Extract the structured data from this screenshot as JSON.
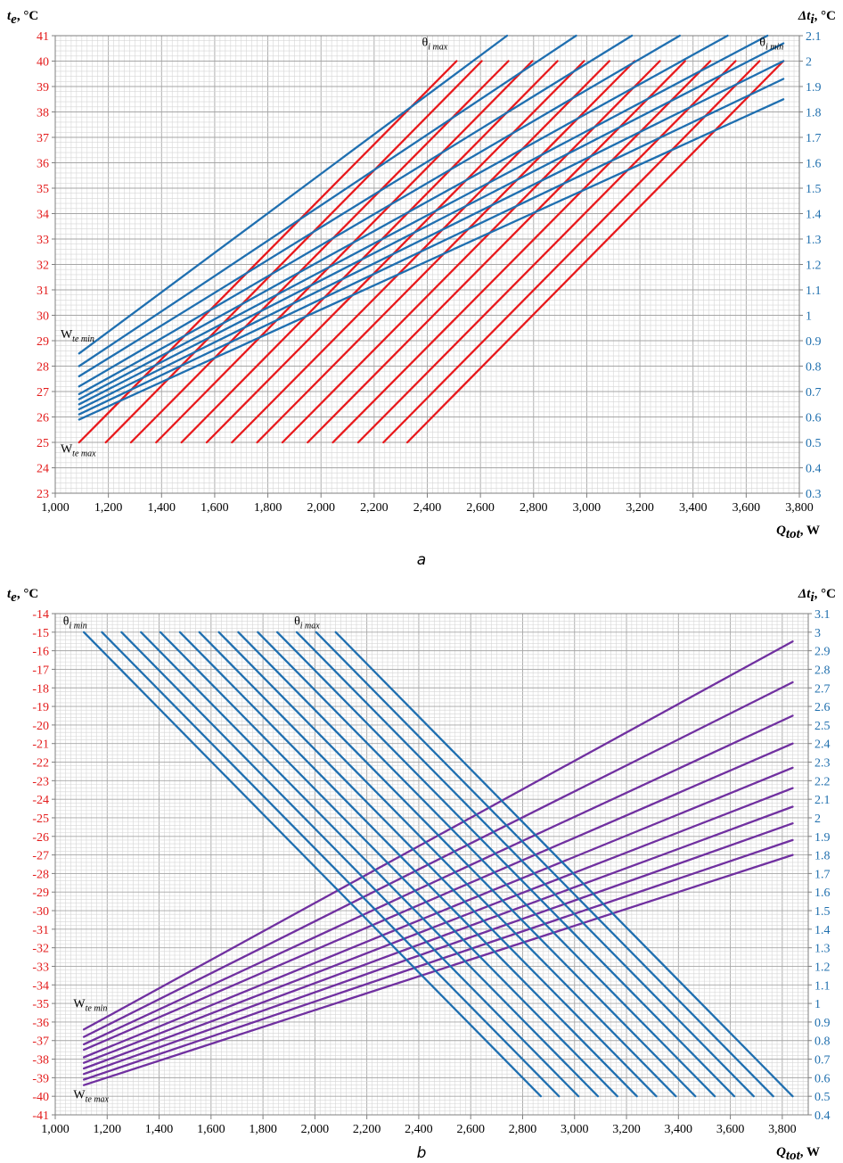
{
  "chart_data": [
    {
      "id": "a",
      "type": "line",
      "caption": "a",
      "ylabel_left": {
        "symbol": "t",
        "sub": "e",
        "unit": ", °C"
      },
      "ylabel_right": {
        "symbol": "Δt",
        "sub": "i",
        "unit": ", °C"
      },
      "xlabel": {
        "symbol": "Q",
        "sub": "tot",
        "unit": ", W"
      },
      "xlim": [
        1000,
        3800
      ],
      "ylim_left": [
        23,
        41
      ],
      "ylim_right": [
        0.3,
        2.1
      ],
      "grid": true,
      "x_ticks": [
        "1,000",
        "1,200",
        "1,400",
        "1,600",
        "1,800",
        "2,000",
        "2,200",
        "2,400",
        "2,600",
        "2,800",
        "3,000",
        "3,200",
        "3,400",
        "3,600",
        "3,800"
      ],
      "y_left_ticks": [
        "23",
        "24",
        "25",
        "26",
        "27",
        "28",
        "29",
        "30",
        "31",
        "32",
        "33",
        "34",
        "35",
        "36",
        "37",
        "38",
        "39",
        "40",
        "41"
      ],
      "y_right_ticks": [
        "0.3",
        "0.4",
        "0.5",
        "0.6",
        "0.7",
        "0.8",
        "0.9",
        "1",
        "1.1",
        "1.2",
        "1.3",
        "1.4",
        "1.5",
        "1.6",
        "1.7",
        "1.8",
        "1.9",
        "2",
        "2.1"
      ],
      "colors": {
        "left_axis": "#e31b1b",
        "right_axis": "#1f6fae",
        "series_red": "#e8191c",
        "series_blue": "#1f6fb0"
      },
      "annotations": [
        {
          "id": "theta-max",
          "text": "θ",
          "sub": "i max",
          "x": 2380,
          "y": 40.6
        },
        {
          "id": "theta-min",
          "text": "θ",
          "sub": "i min",
          "x": 3650,
          "y": 40.6
        },
        {
          "id": "w-min",
          "text": "W",
          "sub": "te min",
          "x": 1020,
          "y": 29.1
        },
        {
          "id": "w-max",
          "text": "W",
          "sub": "te max",
          "x": 1020,
          "y": 24.6
        }
      ],
      "series_red": [
        {
          "axis": "left",
          "x": [
            1090,
            2510
          ],
          "y": [
            25,
            40
          ]
        },
        {
          "axis": "left",
          "x": [
            1190,
            2605
          ],
          "y": [
            25,
            40
          ]
        },
        {
          "axis": "left",
          "x": [
            1285,
            2705
          ],
          "y": [
            25,
            40
          ]
        },
        {
          "axis": "left",
          "x": [
            1380,
            2795
          ],
          "y": [
            25,
            40
          ]
        },
        {
          "axis": "left",
          "x": [
            1475,
            2890
          ],
          "y": [
            25,
            40
          ]
        },
        {
          "axis": "left",
          "x": [
            1570,
            2990
          ],
          "y": [
            25,
            40
          ]
        },
        {
          "axis": "left",
          "x": [
            1665,
            3085
          ],
          "y": [
            25,
            40
          ]
        },
        {
          "axis": "left",
          "x": [
            1760,
            3180
          ],
          "y": [
            25,
            40
          ]
        },
        {
          "axis": "left",
          "x": [
            1855,
            3275
          ],
          "y": [
            25,
            40
          ]
        },
        {
          "axis": "left",
          "x": [
            1950,
            3370
          ],
          "y": [
            25,
            40
          ]
        },
        {
          "axis": "left",
          "x": [
            2045,
            3465
          ],
          "y": [
            25,
            40
          ]
        },
        {
          "axis": "left",
          "x": [
            2140,
            3560
          ],
          "y": [
            25,
            40
          ]
        },
        {
          "axis": "left",
          "x": [
            2235,
            3650
          ],
          "y": [
            25,
            40
          ]
        },
        {
          "axis": "left",
          "x": [
            2325,
            3740
          ],
          "y": [
            25,
            40
          ]
        }
      ],
      "series_blue": [
        {
          "axis": "right",
          "x": [
            1090,
            2700
          ],
          "y": [
            0.85,
            2.1
          ]
        },
        {
          "axis": "right",
          "x": [
            1090,
            2960
          ],
          "y": [
            0.8,
            2.1
          ]
        },
        {
          "axis": "right",
          "x": [
            1090,
            3170
          ],
          "y": [
            0.76,
            2.1
          ]
        },
        {
          "axis": "right",
          "x": [
            1090,
            3350
          ],
          "y": [
            0.72,
            2.1
          ]
        },
        {
          "axis": "right",
          "x": [
            1090,
            3530
          ],
          "y": [
            0.69,
            2.1
          ]
        },
        {
          "axis": "right",
          "x": [
            1090,
            3680
          ],
          "y": [
            0.67,
            2.1
          ]
        },
        {
          "axis": "right",
          "x": [
            1090,
            3740
          ],
          "y": [
            0.65,
            2.07
          ]
        },
        {
          "axis": "right",
          "x": [
            1090,
            3740
          ],
          "y": [
            0.63,
            2.0
          ]
        },
        {
          "axis": "right",
          "x": [
            1090,
            3740
          ],
          "y": [
            0.61,
            1.93
          ]
        },
        {
          "axis": "right",
          "x": [
            1090,
            3740
          ],
          "y": [
            0.59,
            1.85
          ]
        }
      ]
    },
    {
      "id": "b",
      "type": "line",
      "caption": "b",
      "ylabel_left": {
        "symbol": "t",
        "sub": "e",
        "unit": ", °C"
      },
      "ylabel_right": {
        "symbol": "Δt",
        "sub": "i",
        "unit": ", °C"
      },
      "xlabel": {
        "symbol": "Q",
        "sub": "tot",
        "unit": ", W"
      },
      "xlim": [
        1000,
        3900
      ],
      "ylim_left": [
        -41,
        -14
      ],
      "ylim_right": [
        0.4,
        3.1
      ],
      "grid": true,
      "x_ticks": [
        "1,000",
        "1,200",
        "1,400",
        "1,600",
        "1,800",
        "2,000",
        "2,200",
        "2,400",
        "2,600",
        "2,800",
        "3,000",
        "3,200",
        "3,400",
        "3,600",
        "3,800"
      ],
      "y_left_ticks": [
        "-41",
        "-40",
        "-39",
        "-38",
        "-37",
        "-36",
        "-35",
        "-34",
        "-33",
        "-32",
        "-31",
        "-30",
        "-29",
        "-28",
        "-27",
        "-26",
        "-25",
        "-24",
        "-23",
        "-22",
        "-21",
        "-20",
        "-19",
        "-18",
        "-17",
        "-16",
        "-15",
        "-14"
      ],
      "y_right_ticks": [
        "0.4",
        "0.5",
        "0.6",
        "0.7",
        "0.8",
        "0.9",
        "1",
        "1.1",
        "1.2",
        "1.3",
        "1.4",
        "1.5",
        "1.6",
        "1.7",
        "1.8",
        "1.9",
        "2",
        "2.1",
        "2.2",
        "2.3",
        "2.4",
        "2.5",
        "2.6",
        "2.7",
        "2.8",
        "2.9",
        "3",
        "3.1"
      ],
      "colors": {
        "left_axis": "#e31b1b",
        "right_axis": "#1f6fae",
        "series_blue": "#1f6fb0",
        "series_purple": "#7030a0"
      },
      "annotations": [
        {
          "id": "theta-min",
          "text": "θ",
          "sub": "i min",
          "x": 1030,
          "y": -14.6
        },
        {
          "id": "theta-max",
          "text": "θ",
          "sub": "i max",
          "x": 1920,
          "y": -14.6
        },
        {
          "id": "w-min",
          "text": "W",
          "sub": "te min",
          "x": 1070,
          "y": -35.2
        },
        {
          "id": "w-max",
          "text": "W",
          "sub": "te max",
          "x": 1070,
          "y": -40.1
        }
      ],
      "series_blue": [
        {
          "axis": "left",
          "x": [
            1110,
            2870
          ],
          "y": [
            -15,
            -40
          ]
        },
        {
          "axis": "left",
          "x": [
            1180,
            2940
          ],
          "y": [
            -15,
            -40
          ]
        },
        {
          "axis": "left",
          "x": [
            1255,
            3015
          ],
          "y": [
            -15,
            -40
          ]
        },
        {
          "axis": "left",
          "x": [
            1330,
            3090
          ],
          "y": [
            -15,
            -40
          ]
        },
        {
          "axis": "left",
          "x": [
            1405,
            3165
          ],
          "y": [
            -15,
            -40
          ]
        },
        {
          "axis": "left",
          "x": [
            1480,
            3240
          ],
          "y": [
            -15,
            -40
          ]
        },
        {
          "axis": "left",
          "x": [
            1555,
            3315
          ],
          "y": [
            -15,
            -40
          ]
        },
        {
          "axis": "left",
          "x": [
            1630,
            3390
          ],
          "y": [
            -15,
            -40
          ]
        },
        {
          "axis": "left",
          "x": [
            1705,
            3465
          ],
          "y": [
            -15,
            -40
          ]
        },
        {
          "axis": "left",
          "x": [
            1780,
            3540
          ],
          "y": [
            -15,
            -40
          ]
        },
        {
          "axis": "left",
          "x": [
            1855,
            3615
          ],
          "y": [
            -15,
            -40
          ]
        },
        {
          "axis": "left",
          "x": [
            1930,
            3690
          ],
          "y": [
            -15,
            -40
          ]
        },
        {
          "axis": "left",
          "x": [
            2005,
            3765
          ],
          "y": [
            -15,
            -40
          ]
        },
        {
          "axis": "left",
          "x": [
            2080,
            3840
          ],
          "y": [
            -15,
            -40
          ]
        }
      ],
      "series_purple": [
        {
          "axis": "right",
          "x": [
            1110,
            3840
          ],
          "y": [
            0.86,
            2.95
          ]
        },
        {
          "axis": "right",
          "x": [
            1110,
            3840
          ],
          "y": [
            0.82,
            2.73
          ]
        },
        {
          "axis": "right",
          "x": [
            1110,
            3840
          ],
          "y": [
            0.78,
            2.55
          ]
        },
        {
          "axis": "right",
          "x": [
            1110,
            3840
          ],
          "y": [
            0.75,
            2.4
          ]
        },
        {
          "axis": "right",
          "x": [
            1110,
            3840
          ],
          "y": [
            0.71,
            2.27
          ]
        },
        {
          "axis": "right",
          "x": [
            1110,
            3840
          ],
          "y": [
            0.68,
            2.16
          ]
        },
        {
          "axis": "right",
          "x": [
            1110,
            3840
          ],
          "y": [
            0.65,
            2.06
          ]
        },
        {
          "axis": "right",
          "x": [
            1110,
            3840
          ],
          "y": [
            0.62,
            1.97
          ]
        },
        {
          "axis": "right",
          "x": [
            1110,
            3840
          ],
          "y": [
            0.59,
            1.88
          ]
        },
        {
          "axis": "right",
          "x": [
            1110,
            3840
          ],
          "y": [
            0.56,
            1.8
          ]
        }
      ]
    }
  ]
}
